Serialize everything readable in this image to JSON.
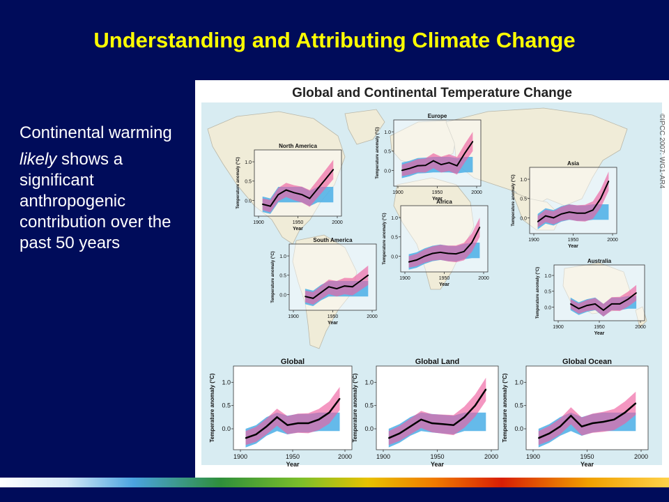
{
  "slide": {
    "title": "Understanding and Attributing Climate Change",
    "bullet_1": "Continental warming",
    "bullet_2_em": "likely",
    "bullet_2_rest": " shows a significant anthropogenic contribution over the past 50 years"
  },
  "figure": {
    "title": "Global and Continental Temperature Change",
    "credit": "©IPCC 2007: WG1-AR4"
  },
  "colors": {
    "background": "#000c5a",
    "title": "#ffff00",
    "ocean": "#d8ecf2",
    "land": "#f0ecd8",
    "model_natural": "#4aaee6",
    "model_all": "#ee5fa0",
    "observed": "#000000"
  },
  "chart_data": [
    {
      "type": "area",
      "title": "North America",
      "xlabel": "Year",
      "ylabel": "Temperature anomaly (°C)",
      "xlim": [
        1900,
        2000
      ],
      "ylim": [
        -0.3,
        1.2
      ],
      "xticks": [
        1900,
        1950,
        2000
      ],
      "yticks": [
        0.0,
        0.5,
        1.0
      ],
      "series": [
        {
          "name": "observed",
          "x": [
            1905,
            1915,
            1925,
            1935,
            1945,
            1955,
            1965,
            1975,
            1985,
            1995
          ],
          "values": [
            -0.1,
            -0.15,
            0.15,
            0.27,
            0.2,
            0.15,
            0.05,
            0.3,
            0.55,
            0.8
          ]
        }
      ]
    },
    {
      "type": "area",
      "title": "Europe",
      "xlabel": "Year",
      "ylabel": "Temperature anomaly (°C)",
      "xlim": [
        1900,
        2000
      ],
      "ylim": [
        -0.3,
        1.2
      ],
      "xticks": [
        1900,
        1950,
        2000
      ],
      "yticks": [
        0.0,
        0.5,
        1.0
      ],
      "series": [
        {
          "name": "observed",
          "x": [
            1905,
            1915,
            1925,
            1935,
            1945,
            1955,
            1965,
            1975,
            1985,
            1995
          ],
          "values": [
            0.0,
            0.05,
            0.12,
            0.13,
            0.25,
            0.15,
            0.2,
            0.12,
            0.45,
            0.75
          ]
        }
      ]
    },
    {
      "type": "area",
      "title": "Asia",
      "xlabel": "Year",
      "ylabel": "Temperature anomaly (°C)",
      "xlim": [
        1900,
        2000
      ],
      "ylim": [
        -0.3,
        1.2
      ],
      "xticks": [
        1900,
        1950,
        2000
      ],
      "yticks": [
        0.0,
        0.5,
        1.0
      ],
      "series": [
        {
          "name": "observed",
          "x": [
            1905,
            1915,
            1925,
            1935,
            1945,
            1955,
            1965,
            1975,
            1985,
            1995
          ],
          "values": [
            -0.1,
            0.05,
            0.0,
            0.1,
            0.15,
            0.12,
            0.12,
            0.2,
            0.5,
            0.95
          ]
        }
      ]
    },
    {
      "type": "area",
      "title": "Africa",
      "xlabel": "Year",
      "ylabel": "Temperature anomaly (°C)",
      "xlim": [
        1900,
        2000
      ],
      "ylim": [
        -0.3,
        1.2
      ],
      "xticks": [
        1900,
        1950,
        2000
      ],
      "yticks": [
        0.0,
        0.5,
        1.0
      ],
      "series": [
        {
          "name": "observed",
          "x": [
            1905,
            1915,
            1925,
            1935,
            1945,
            1955,
            1965,
            1975,
            1985,
            1995
          ],
          "values": [
            -0.15,
            -0.1,
            0.0,
            0.07,
            0.1,
            0.07,
            0.06,
            0.12,
            0.35,
            0.75
          ]
        }
      ]
    },
    {
      "type": "area",
      "title": "South America",
      "xlabel": "Year",
      "ylabel": "Temperature anomaly (°C)",
      "xlim": [
        1900,
        2000
      ],
      "ylim": [
        -0.3,
        1.2
      ],
      "xticks": [
        1900,
        1950,
        2000
      ],
      "yticks": [
        0.0,
        0.5,
        1.0
      ],
      "series": [
        {
          "name": "observed",
          "x": [
            1915,
            1925,
            1935,
            1945,
            1955,
            1965,
            1975,
            1985,
            1995
          ],
          "values": [
            -0.05,
            -0.1,
            0.05,
            0.2,
            0.15,
            0.22,
            0.2,
            0.35,
            0.5
          ]
        }
      ]
    },
    {
      "type": "area",
      "title": "Australia",
      "xlabel": "Year",
      "ylabel": "Temperature anomaly (°C)",
      "xlim": [
        1900,
        2000
      ],
      "ylim": [
        -0.3,
        1.2
      ],
      "xticks": [
        1900,
        1950,
        2000
      ],
      "yticks": [
        0.0,
        0.5,
        1.0
      ],
      "series": [
        {
          "name": "observed",
          "x": [
            1915,
            1925,
            1935,
            1945,
            1955,
            1965,
            1975,
            1985,
            1995
          ],
          "values": [
            0.1,
            -0.05,
            0.05,
            0.1,
            -0.1,
            0.1,
            0.1,
            0.25,
            0.45
          ]
        }
      ]
    },
    {
      "type": "area",
      "title": "Global",
      "xlabel": "Year",
      "ylabel": "Temperature anomaly (°C)",
      "xlim": [
        1900,
        2000
      ],
      "ylim": [
        -0.3,
        1.2
      ],
      "xticks": [
        1900,
        1950,
        2000
      ],
      "yticks": [
        0.0,
        0.5,
        1.0
      ],
      "series": [
        {
          "name": "observed",
          "x": [
            1905,
            1915,
            1925,
            1935,
            1945,
            1955,
            1965,
            1975,
            1985,
            1995
          ],
          "values": [
            -0.2,
            -0.12,
            0.05,
            0.25,
            0.08,
            0.12,
            0.12,
            0.2,
            0.35,
            0.65
          ]
        }
      ]
    },
    {
      "type": "area",
      "title": "Global Land",
      "xlabel": "Year",
      "ylabel": "Temperature anomaly (°C)",
      "xlim": [
        1900,
        2000
      ],
      "ylim": [
        -0.3,
        1.2
      ],
      "xticks": [
        1900,
        1950,
        2000
      ],
      "yticks": [
        0.0,
        0.5,
        1.0
      ],
      "series": [
        {
          "name": "observed",
          "x": [
            1905,
            1915,
            1925,
            1935,
            1945,
            1955,
            1965,
            1975,
            1985,
            1995
          ],
          "values": [
            -0.2,
            -0.1,
            0.05,
            0.2,
            0.12,
            0.1,
            0.08,
            0.25,
            0.5,
            0.85
          ]
        }
      ]
    },
    {
      "type": "area",
      "title": "Global Ocean",
      "xlabel": "Year",
      "ylabel": "Temperature anomaly (°C)",
      "xlim": [
        1900,
        2000
      ],
      "ylim": [
        -0.3,
        1.2
      ],
      "xticks": [
        1900,
        1950,
        2000
      ],
      "yticks": [
        0.0,
        0.5,
        1.0
      ],
      "series": [
        {
          "name": "observed",
          "x": [
            1905,
            1915,
            1925,
            1935,
            1945,
            1955,
            1965,
            1975,
            1985,
            1995
          ],
          "values": [
            -0.2,
            -0.1,
            0.05,
            0.28,
            0.05,
            0.12,
            0.15,
            0.2,
            0.35,
            0.55
          ]
        }
      ]
    }
  ]
}
